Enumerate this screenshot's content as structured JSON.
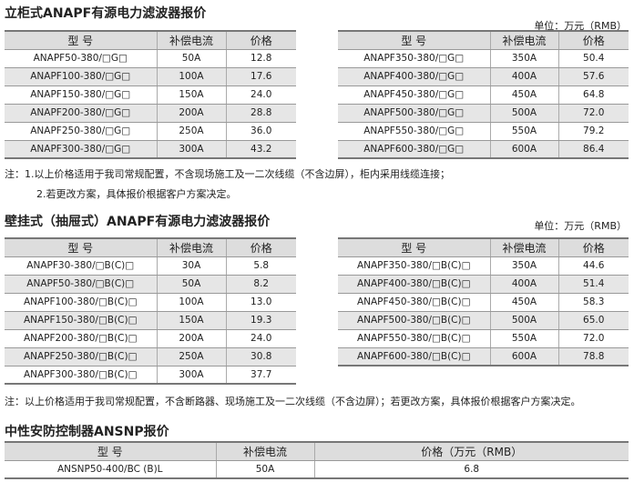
{
  "section1": {
    "title": "立柜式ANAPF有源电力滤波器报价",
    "unit": "单位：万元（RMB）",
    "headers": [
      "型 号",
      "补偿电流",
      "价格"
    ],
    "left": [
      [
        "ANAPF50-380/□G□",
        "50A",
        "12.8"
      ],
      [
        "ANAPF100-380/□G□",
        "100A",
        "17.6"
      ],
      [
        "ANAPF150-380/□G□",
        "150A",
        "24.0"
      ],
      [
        "ANAPF200-380/□G□",
        "200A",
        "28.8"
      ],
      [
        "ANAPF250-380/□G□",
        "250A",
        "36.0"
      ],
      [
        "ANAPF300-380/□G□",
        "300A",
        "43.2"
      ]
    ],
    "right": [
      [
        "ANAPF350-380/□G□",
        "350A",
        "50.4"
      ],
      [
        "ANAPF400-380/□G□",
        "400A",
        "57.6"
      ],
      [
        "ANAPF450-380/□G□",
        "450A",
        "64.8"
      ],
      [
        "ANAPF500-380/□G□",
        "500A",
        "72.0"
      ],
      [
        "ANAPF550-380/□G□",
        "550A",
        "79.2"
      ],
      [
        "ANAPF600-380/□G□",
        "600A",
        "86.4"
      ]
    ],
    "note1": "注：1.以上价格适用于我司常规配置，不含现场施工及一二次线缆（不含边屏），柜内采用线缆连接；",
    "note2": "2.若更改方案，具体报价根据客户方案决定。"
  },
  "section2": {
    "title": "壁挂式（抽屉式）ANAPF有源电力滤波器报价",
    "unit": "单位：万元（RMB）",
    "headers": [
      "型 号",
      "补偿电流",
      "价格"
    ],
    "left": [
      [
        "ANAPF30-380/□B(C)□",
        "30A",
        "5.8"
      ],
      [
        "ANAPF50-380/□B(C)□",
        "50A",
        "8.2"
      ],
      [
        "ANAPF100-380/□B(C)□",
        "100A",
        "13.0"
      ],
      [
        "ANAPF150-380/□B(C)□",
        "150A",
        "19.3"
      ],
      [
        "ANAPF200-380/□B(C)□",
        "200A",
        "24.0"
      ],
      [
        "ANAPF250-380/□B(C)□",
        "250A",
        "30.8"
      ],
      [
        "ANAPF300-380/□B(C)□",
        "300A",
        "37.7"
      ]
    ],
    "right": [
      [
        "ANAPF350-380/□B(C)□",
        "350A",
        "44.6"
      ],
      [
        "ANAPF400-380/□B(C)□",
        "400A",
        "51.4"
      ],
      [
        "ANAPF450-380/□B(C)□",
        "450A",
        "58.3"
      ],
      [
        "ANAPF500-380/□B(C)□",
        "500A",
        "65.0"
      ],
      [
        "ANAPF550-380/□B(C)□",
        "550A",
        "72.0"
      ],
      [
        "ANAPF600-380/□B(C)□",
        "600A",
        "78.8"
      ]
    ],
    "note": "注：以上价格适用于我司常规配置，不含断路器、现场施工及一二次线缆（不含边屏）；若更改方案，具体报价根据客户方案决定。"
  },
  "section3": {
    "title": "中性安防控制器ANSNP报价",
    "headers": [
      "型 号",
      "补偿电流",
      "价格（万元（RMB）"
    ],
    "rows": [
      [
        "ANSNP50-400/BC (B)L",
        "50A",
        "6.8"
      ]
    ]
  }
}
